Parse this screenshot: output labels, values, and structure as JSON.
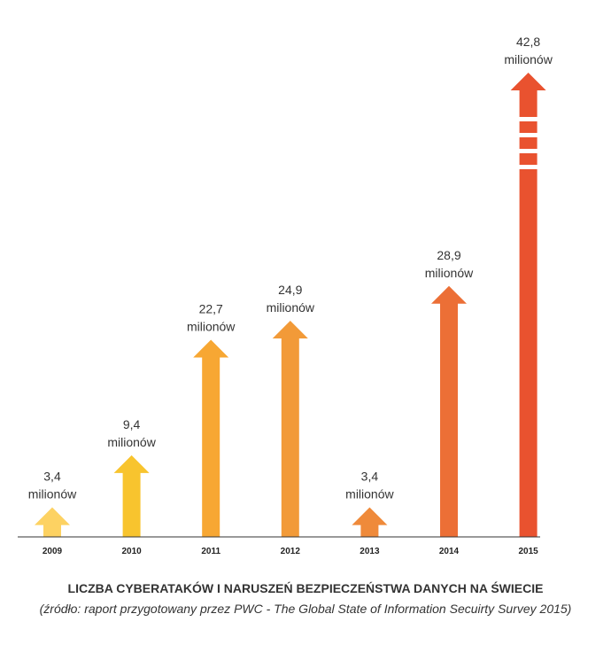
{
  "chart_data": {
    "type": "bar",
    "categories": [
      "2009",
      "2010",
      "2011",
      "2012",
      "2013",
      "2014",
      "2015"
    ],
    "values": [
      3.4,
      9.4,
      22.7,
      24.9,
      3.4,
      28.9,
      42.8
    ],
    "value_labels": [
      "3,4",
      "9,4",
      "22,7",
      "24,9",
      "3,4",
      "28,9",
      "42,8"
    ],
    "unit_label": "milionów",
    "colors": [
      "#fdd262",
      "#f8c42e",
      "#f7a733",
      "#f29a38",
      "#ef8a3a",
      "#ec6f36",
      "#e9522f"
    ],
    "axis_color": "#333333",
    "broken_scale_last": true,
    "title": "LICZBA CYBERATAKÓW I NARUSZEŃ BEZPIECZEŃSTWA DANYCH NA ŚWIECIE",
    "subtitle": "(źródło: raport przygotowany przez PWC - The Global State of Information Secuirty Survey 2015)",
    "grid": false,
    "legend": "none"
  }
}
